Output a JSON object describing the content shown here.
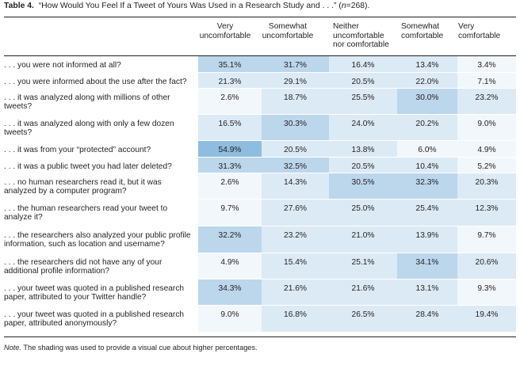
{
  "caption": {
    "label": "Table 4.",
    "text": "“How Would You Feel If a Tweet of Yours Was Used in a Research Study and . . .” (",
    "n_symbol": "n",
    "n_value": "=268)."
  },
  "columns": [
    {
      "label": "Very\nuncomfortable"
    },
    {
      "label": "Somewhat\nuncomfortable"
    },
    {
      "label": "Neither\nuncomfortable\nnor comfortable"
    },
    {
      "label": "Somewhat\ncomfortable"
    },
    {
      "label": "Very\ncomfortable"
    }
  ],
  "colors": {
    "none": "#ffffff",
    "light": "#f2f7fb",
    "pale": "#dceaf5",
    "mid": "#bcd6ec",
    "dark": "#8fbde0"
  },
  "rows": [
    {
      "label": ". . . you were not informed at all?",
      "values": [
        "35.1%",
        "31.7%",
        "16.4%",
        "13.4%",
        "3.4%"
      ],
      "shades": [
        "mid",
        "mid",
        "pale",
        "pale",
        "light"
      ]
    },
    {
      "label": ". . . you were informed about the use after the fact?",
      "values": [
        "21.3%",
        "29.1%",
        "20.5%",
        "22.0%",
        "7.1%"
      ],
      "shades": [
        "pale",
        "pale",
        "pale",
        "pale",
        "light"
      ]
    },
    {
      "label": ". . . it was analyzed along with millions of other tweets?",
      "values": [
        "2.6%",
        "18.7%",
        "25.5%",
        "30.0%",
        "23.2%"
      ],
      "shades": [
        "light",
        "pale",
        "pale",
        "mid",
        "pale"
      ]
    },
    {
      "label": ". . . it was analyzed along with only a few dozen tweets?",
      "values": [
        "16.5%",
        "30.3%",
        "24.0%",
        "20.2%",
        "9.0%"
      ],
      "shades": [
        "pale",
        "mid",
        "pale",
        "pale",
        "light"
      ]
    },
    {
      "label": ". . . it was from your “protected” account?",
      "values": [
        "54.9%",
        "20.5%",
        "13.8%",
        "6.0%",
        "4.9%"
      ],
      "shades": [
        "dark",
        "pale",
        "pale",
        "light",
        "light"
      ]
    },
    {
      "label": ". . . it was a public tweet you had later deleted?",
      "values": [
        "31.3%",
        "32.5%",
        "20.5%",
        "10.4%",
        "5.2%"
      ],
      "shades": [
        "mid",
        "mid",
        "pale",
        "pale",
        "light"
      ]
    },
    {
      "label": ". . . no human researchers read it, but it was analyzed by a computer program?",
      "values": [
        "2.6%",
        "14.3%",
        "30.5%",
        "32.3%",
        "20.3%"
      ],
      "shades": [
        "light",
        "pale",
        "mid",
        "mid",
        "pale"
      ]
    },
    {
      "label": ". . . the human researchers read your tweet to analyze it?",
      "values": [
        "9.7%",
        "27.6%",
        "25.0%",
        "25.4%",
        "12.3%"
      ],
      "shades": [
        "light",
        "pale",
        "pale",
        "pale",
        "pale"
      ]
    },
    {
      "label": ". . . the researchers also analyzed your public profile information, such as location and username?",
      "values": [
        "32.2%",
        "23.2%",
        "21.0%",
        "13.9%",
        "9.7%"
      ],
      "shades": [
        "mid",
        "pale",
        "pale",
        "pale",
        "light"
      ]
    },
    {
      "label": ". . . the researchers did not have any of your additional profile information?",
      "values": [
        "4.9%",
        "15.4%",
        "25.1%",
        "34.1%",
        "20.6%"
      ],
      "shades": [
        "light",
        "pale",
        "pale",
        "mid",
        "pale"
      ]
    },
    {
      "label": ". . . your tweet was quoted in a published research paper, attributed to your Twitter handle?",
      "values": [
        "34.3%",
        "21.6%",
        "21.6%",
        "13.1%",
        "9.3%"
      ],
      "shades": [
        "mid",
        "pale",
        "pale",
        "pale",
        "light"
      ]
    },
    {
      "label": ". . . your tweet was quoted in a published research paper, attributed anonymously?",
      "values": [
        "9.0%",
        "16.8%",
        "26.5%",
        "28.4%",
        "19.4%"
      ],
      "shades": [
        "light",
        "pale",
        "pale",
        "pale",
        "pale"
      ]
    }
  ],
  "note": {
    "label": "Note.",
    "text": " The shading was used to provide a visual cue about higher percentages."
  }
}
